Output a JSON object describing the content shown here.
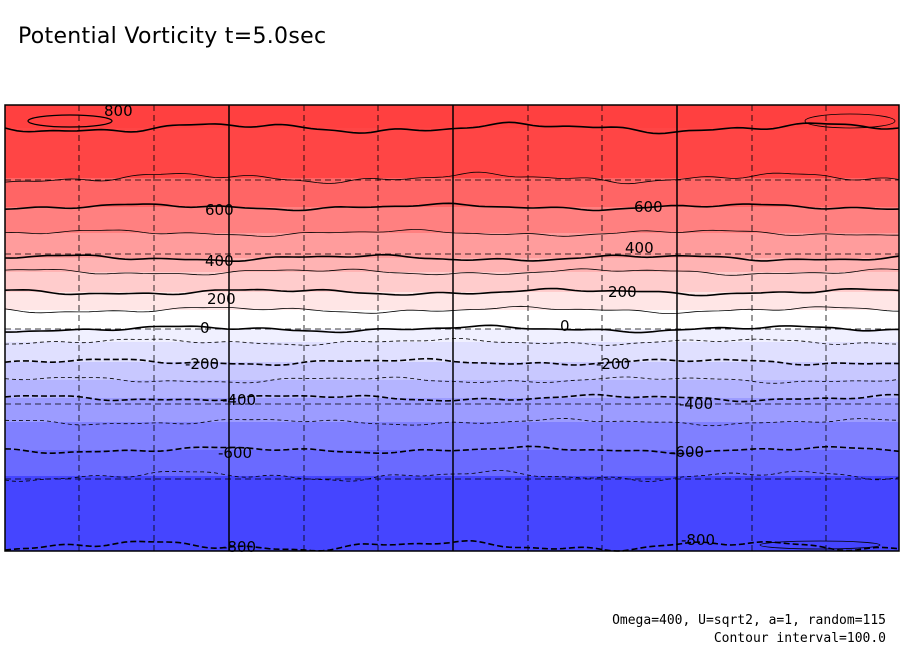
{
  "title": "Potential Vorticity t=5.0sec",
  "footer": {
    "params": "Omega=400, U=sqrt2, a=1, random=115",
    "interval": "Contour interval=100.0"
  },
  "chart_data": {
    "type": "heatmap",
    "title": "Potential Vorticity t=5.0sec",
    "xlabel": "",
    "ylabel": "",
    "contour_interval": 100.0,
    "color_scale": "blue-white-red",
    "value_range": [
      -900,
      900
    ],
    "grid": true,
    "bands": [
      {
        "lo": 800,
        "hi": 900,
        "color": "#ff4040"
      },
      {
        "lo": 700,
        "hi": 800,
        "color": "#ff4545"
      },
      {
        "lo": 600,
        "hi": 700,
        "color": "#ff6565"
      },
      {
        "lo": 500,
        "hi": 600,
        "color": "#ff8080"
      },
      {
        "lo": 400,
        "hi": 500,
        "color": "#ff9c9c"
      },
      {
        "lo": 300,
        "hi": 400,
        "color": "#ffb3b3"
      },
      {
        "lo": 200,
        "hi": 300,
        "color": "#ffcccc"
      },
      {
        "lo": 100,
        "hi": 200,
        "color": "#ffe6e6"
      },
      {
        "lo": 0,
        "hi": 100,
        "color": "#ffffff"
      },
      {
        "lo": -100,
        "hi": 0,
        "color": "#f0f0ff"
      },
      {
        "lo": -200,
        "hi": -100,
        "color": "#e0e0ff"
      },
      {
        "lo": -300,
        "hi": -200,
        "color": "#c8c8ff"
      },
      {
        "lo": -400,
        "hi": -300,
        "color": "#b4b4ff"
      },
      {
        "lo": -500,
        "hi": -400,
        "color": "#9c9cff"
      },
      {
        "lo": -600,
        "hi": -500,
        "color": "#8080ff"
      },
      {
        "lo": -700,
        "hi": -600,
        "color": "#6a6aff"
      },
      {
        "lo": -900,
        "hi": -700,
        "color": "#4545ff"
      }
    ],
    "contours": [
      {
        "level": 800,
        "style": "solid",
        "bold": true
      },
      {
        "level": 700,
        "style": "solid",
        "bold": false
      },
      {
        "level": 600,
        "style": "solid",
        "bold": true
      },
      {
        "level": 500,
        "style": "solid",
        "bold": false
      },
      {
        "level": 400,
        "style": "solid",
        "bold": true
      },
      {
        "level": 300,
        "style": "solid",
        "bold": false
      },
      {
        "level": 200,
        "style": "solid",
        "bold": true
      },
      {
        "level": 100,
        "style": "solid",
        "bold": false
      },
      {
        "level": 0,
        "style": "solid",
        "bold": true
      },
      {
        "level": -100,
        "style": "dashed",
        "bold": false
      },
      {
        "level": -200,
        "style": "dashed",
        "bold": true
      },
      {
        "level": -300,
        "style": "dashed",
        "bold": false
      },
      {
        "level": -400,
        "style": "dashed",
        "bold": true
      },
      {
        "level": -500,
        "style": "dashed",
        "bold": false
      },
      {
        "level": -600,
        "style": "dashed",
        "bold": true
      },
      {
        "level": -700,
        "style": "dashed",
        "bold": false
      },
      {
        "level": -800,
        "style": "dashed",
        "bold": true
      }
    ],
    "labels": [
      {
        "text": "800",
        "level": 800
      },
      {
        "text": "600",
        "level": 600
      },
      {
        "text": "600",
        "level": 600
      },
      {
        "text": "400",
        "level": 400
      },
      {
        "text": "400",
        "level": 400
      },
      {
        "text": "200",
        "level": 200
      },
      {
        "text": "200",
        "level": 200
      },
      {
        "text": "0",
        "level": 0
      },
      {
        "text": "0",
        "level": 0
      },
      {
        "text": "-200",
        "level": -200
      },
      {
        "text": "-200",
        "level": -200
      },
      {
        "text": "-400",
        "level": -400
      },
      {
        "text": "-400",
        "level": -400
      },
      {
        "text": "-600",
        "level": -600
      },
      {
        "text": "-600",
        "level": -600
      },
      {
        "text": "-800",
        "level": -800
      },
      {
        "text": "-800",
        "level": -800
      }
    ]
  }
}
